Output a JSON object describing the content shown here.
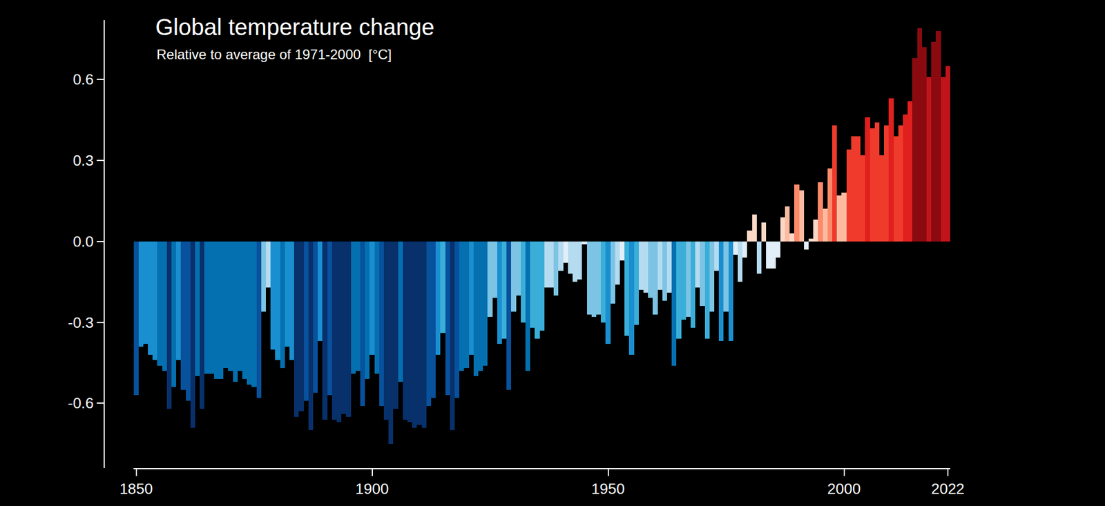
{
  "chart_data": {
    "type": "bar",
    "title": "Global temperature change",
    "subtitle": "Relative to average of 1971-2000  [°C]",
    "x": [
      1850,
      1851,
      1852,
      1853,
      1854,
      1855,
      1856,
      1857,
      1858,
      1859,
      1860,
      1861,
      1862,
      1863,
      1864,
      1865,
      1866,
      1867,
      1868,
      1869,
      1870,
      1871,
      1872,
      1873,
      1874,
      1875,
      1876,
      1877,
      1878,
      1879,
      1880,
      1881,
      1882,
      1883,
      1884,
      1885,
      1886,
      1887,
      1888,
      1889,
      1890,
      1891,
      1892,
      1893,
      1894,
      1895,
      1896,
      1897,
      1898,
      1899,
      1900,
      1901,
      1902,
      1903,
      1904,
      1905,
      1906,
      1907,
      1908,
      1909,
      1910,
      1911,
      1912,
      1913,
      1914,
      1915,
      1916,
      1917,
      1918,
      1919,
      1920,
      1921,
      1922,
      1923,
      1924,
      1925,
      1926,
      1927,
      1928,
      1929,
      1930,
      1931,
      1932,
      1933,
      1934,
      1935,
      1936,
      1937,
      1938,
      1939,
      1940,
      1941,
      1942,
      1943,
      1944,
      1945,
      1946,
      1947,
      1948,
      1949,
      1950,
      1951,
      1952,
      1953,
      1954,
      1955,
      1956,
      1957,
      1958,
      1959,
      1960,
      1961,
      1962,
      1963,
      1964,
      1965,
      1966,
      1967,
      1968,
      1969,
      1970,
      1971,
      1972,
      1973,
      1974,
      1975,
      1976,
      1977,
      1978,
      1979,
      1980,
      1981,
      1982,
      1983,
      1984,
      1985,
      1986,
      1987,
      1988,
      1989,
      1990,
      1991,
      1992,
      1993,
      1994,
      1995,
      1996,
      1997,
      1998,
      1999,
      2000,
      2001,
      2002,
      2003,
      2004,
      2005,
      2006,
      2007,
      2008,
      2009,
      2010,
      2011,
      2012,
      2013,
      2014,
      2015,
      2016,
      2017,
      2018,
      2019,
      2020,
      2021,
      2022
    ],
    "values": [
      -0.57,
      -0.39,
      -0.38,
      -0.42,
      -0.44,
      -0.46,
      -0.48,
      -0.62,
      -0.54,
      -0.44,
      -0.55,
      -0.59,
      -0.69,
      -0.5,
      -0.62,
      -0.49,
      -0.49,
      -0.51,
      -0.51,
      -0.47,
      -0.48,
      -0.52,
      -0.48,
      -0.51,
      -0.53,
      -0.54,
      -0.58,
      -0.26,
      -0.17,
      -0.4,
      -0.44,
      -0.47,
      -0.39,
      -0.44,
      -0.65,
      -0.63,
      -0.59,
      -0.7,
      -0.56,
      -0.37,
      -0.66,
      -0.57,
      -0.66,
      -0.67,
      -0.64,
      -0.65,
      -0.49,
      -0.48,
      -0.61,
      -0.51,
      -0.42,
      -0.49,
      -0.61,
      -0.66,
      -0.75,
      -0.62,
      -0.52,
      -0.66,
      -0.67,
      -0.69,
      -0.68,
      -0.69,
      -0.61,
      -0.58,
      -0.42,
      -0.34,
      -0.57,
      -0.7,
      -0.58,
      -0.48,
      -0.47,
      -0.42,
      -0.5,
      -0.48,
      -0.46,
      -0.28,
      -0.21,
      -0.38,
      -0.36,
      -0.55,
      -0.26,
      -0.2,
      -0.3,
      -0.48,
      -0.32,
      -0.36,
      -0.33,
      -0.17,
      -0.17,
      -0.2,
      -0.11,
      -0.08,
      -0.12,
      -0.15,
      -0.14,
      -0.01,
      -0.27,
      -0.28,
      -0.27,
      -0.3,
      -0.38,
      -0.23,
      -0.16,
      -0.07,
      -0.35,
      -0.42,
      -0.31,
      -0.18,
      -0.19,
      -0.21,
      -0.27,
      -0.18,
      -0.22,
      -0.19,
      -0.46,
      -0.36,
      -0.29,
      -0.28,
      -0.32,
      -0.17,
      -0.24,
      -0.36,
      -0.26,
      -0.11,
      -0.37,
      -0.26,
      -0.37,
      -0.05,
      -0.15,
      -0.06,
      0.04,
      0.1,
      -0.12,
      0.07,
      -0.1,
      -0.1,
      -0.06,
      0.09,
      0.13,
      0.03,
      0.21,
      0.19,
      -0.03,
      0.01,
      0.08,
      0.22,
      0.12,
      0.27,
      0.43,
      0.17,
      0.18,
      0.34,
      0.39,
      0.39,
      0.32,
      0.46,
      0.42,
      0.44,
      0.32,
      0.43,
      0.53,
      0.39,
      0.43,
      0.47,
      0.52,
      0.68,
      0.79,
      0.72,
      0.61,
      0.74,
      0.78,
      0.61,
      0.65
    ],
    "colors": [
      "#08519c",
      "#1a8fcf",
      "#1a8fcf",
      "#1a8fcf",
      "#1a8fcf",
      "#0570b0",
      "#0570b0",
      "#08306b",
      "#0570b0",
      "#1a8fcf",
      "#08519c",
      "#08519c",
      "#08306b",
      "#0570b0",
      "#08306b",
      "#0570b0",
      "#0570b0",
      "#0570b0",
      "#0570b0",
      "#0570b0",
      "#0570b0",
      "#0570b0",
      "#0570b0",
      "#0570b0",
      "#0570b0",
      "#0570b0",
      "#08519c",
      "#7dc4e4",
      "#b5dbf0",
      "#1a8fcf",
      "#1a8fcf",
      "#0570b0",
      "#1a8fcf",
      "#1a8fcf",
      "#08306b",
      "#08306b",
      "#08519c",
      "#08306b",
      "#08519c",
      "#1a8fcf",
      "#08306b",
      "#08519c",
      "#08306b",
      "#08306b",
      "#08306b",
      "#08306b",
      "#0570b0",
      "#0570b0",
      "#08519c",
      "#0570b0",
      "#1a8fcf",
      "#0570b0",
      "#08519c",
      "#08306b",
      "#08306b",
      "#08306b",
      "#0570b0",
      "#08306b",
      "#08306b",
      "#08306b",
      "#08306b",
      "#08306b",
      "#08519c",
      "#08519c",
      "#1a8fcf",
      "#3aaed8",
      "#08519c",
      "#08306b",
      "#08519c",
      "#0570b0",
      "#0570b0",
      "#1a8fcf",
      "#0570b0",
      "#0570b0",
      "#0570b0",
      "#7dc4e4",
      "#7dc4e4",
      "#1a8fcf",
      "#3aaed8",
      "#08519c",
      "#7dc4e4",
      "#7dc4e4",
      "#3aaed8",
      "#0570b0",
      "#3aaed8",
      "#3aaed8",
      "#3aaed8",
      "#b5dbf0",
      "#b5dbf0",
      "#7dc4e4",
      "#b5dbf0",
      "#e2eef8",
      "#b5dbf0",
      "#b5dbf0",
      "#b5dbf0",
      "#e2eef8",
      "#7dc4e4",
      "#7dc4e4",
      "#7dc4e4",
      "#3aaed8",
      "#1a8fcf",
      "#7dc4e4",
      "#b5dbf0",
      "#e2eef8",
      "#3aaed8",
      "#1a8fcf",
      "#3aaed8",
      "#b5dbf0",
      "#b5dbf0",
      "#7dc4e4",
      "#7dc4e4",
      "#b5dbf0",
      "#7dc4e4",
      "#b5dbf0",
      "#0570b0",
      "#3aaed8",
      "#3aaed8",
      "#7dc4e4",
      "#3aaed8",
      "#b5dbf0",
      "#7dc4e4",
      "#3aaed8",
      "#7dc4e4",
      "#b5dbf0",
      "#1a8fcf",
      "#7dc4e4",
      "#1a8fcf",
      "#e2eef8",
      "#b5dbf0",
      "#e2eef8",
      "#fcd7c6",
      "#fcd7c6",
      "#b5dbf0",
      "#fcd7c6",
      "#e2eef8",
      "#e2eef8",
      "#e2eef8",
      "#fcd7c6",
      "#fcbba1",
      "#fcd7c6",
      "#fb8a6a",
      "#fcbba1",
      "#e2eef8",
      "#fcd7c6",
      "#fcd7c6",
      "#fb8a6a",
      "#fcbba1",
      "#fb8a6a",
      "#ef3b2c",
      "#fcbba1",
      "#fcbba1",
      "#ef3b2c",
      "#ef3b2c",
      "#ef3b2c",
      "#ef3b2c",
      "#e0201e",
      "#ef3b2c",
      "#ef3b2c",
      "#ef3b2c",
      "#ef3b2c",
      "#e0201e",
      "#ef3b2c",
      "#ef3b2c",
      "#e0201e",
      "#e0201e",
      "#8b0a10",
      "#8b0a10",
      "#8b0a10",
      "#c0141b",
      "#8b0a10",
      "#8b0a10",
      "#c0141b",
      "#c0141b"
    ],
    "xlim": [
      1849.5,
      2022.5
    ],
    "ylim": [
      -0.84,
      0.82
    ],
    "xticks": [
      1850,
      1900,
      1950,
      2000,
      2022
    ],
    "yticks": [
      -0.6,
      -0.3,
      {
        "value": 0,
        "label": "0.0"
      },
      0.3,
      0.6
    ],
    "grid": false
  }
}
